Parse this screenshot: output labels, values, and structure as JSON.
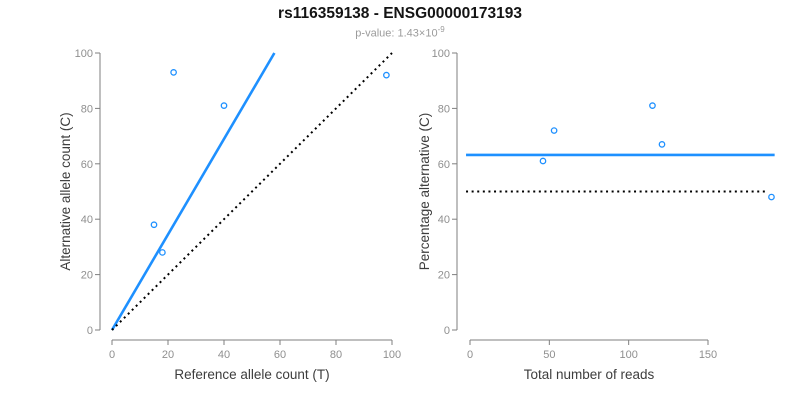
{
  "header": {
    "title": "rs116359138 - ENSG00000173193",
    "subtitle_label": "p-value:",
    "subtitle_value": "1.43×10",
    "subtitle_exponent": "-9"
  },
  "colors": {
    "accent_blue": "#1E90FF",
    "axis_gray": "#7f7f7f",
    "tick_label_gray": "#8f8f8f",
    "axis_title": "#3d3d3d",
    "dotted_black": "#000000"
  },
  "chart_data": [
    {
      "type": "scatter",
      "panel": "allele-counts",
      "xlabel": "Reference allele count (T)",
      "ylabel": "Alternative allele count (C)",
      "xlim": [
        0,
        100
      ],
      "ylim": [
        0,
        100
      ],
      "xticks": [
        0,
        20,
        40,
        60,
        80,
        100
      ],
      "yticks": [
        0,
        20,
        40,
        60,
        80,
        100
      ],
      "grid": false,
      "points": [
        [
          15,
          38
        ],
        [
          18,
          28
        ],
        [
          22,
          93
        ],
        [
          40,
          81
        ],
        [
          98,
          92
        ]
      ],
      "lines": [
        {
          "name": "fit-line",
          "style": "solid",
          "color": "#1E90FF",
          "width": 2.6,
          "x1": 0,
          "y1": 0,
          "x2": 58,
          "y2": 100
        },
        {
          "name": "identity-line",
          "style": "dotted",
          "color": "#000000",
          "width": 2,
          "x1": 0,
          "y1": 0,
          "x2": 100,
          "y2": 100
        }
      ]
    },
    {
      "type": "scatter",
      "panel": "percentage-vs-reads",
      "xlabel": "Total number of reads",
      "ylabel": "Percentage alternative (C)",
      "xlim": [
        0,
        190
      ],
      "ylim": [
        0,
        100
      ],
      "xticks": [
        0,
        50,
        100,
        150
      ],
      "yticks": [
        0,
        20,
        40,
        60,
        80,
        100
      ],
      "grid": false,
      "points": [
        [
          46,
          61
        ],
        [
          53,
          72
        ],
        [
          115,
          81
        ],
        [
          121,
          67
        ],
        [
          190,
          48
        ]
      ],
      "lines": [
        {
          "name": "mean-percentage-line",
          "style": "solid",
          "color": "#1E90FF",
          "width": 2.6,
          "x1": -2.5,
          "y1": 63.2,
          "x2": 192,
          "y2": 63.2
        },
        {
          "name": "fifty-percent-line",
          "style": "dotted",
          "color": "#000000",
          "width": 2,
          "x1": -2.5,
          "y1": 50,
          "x2": 188,
          "y2": 50
        }
      ]
    }
  ]
}
